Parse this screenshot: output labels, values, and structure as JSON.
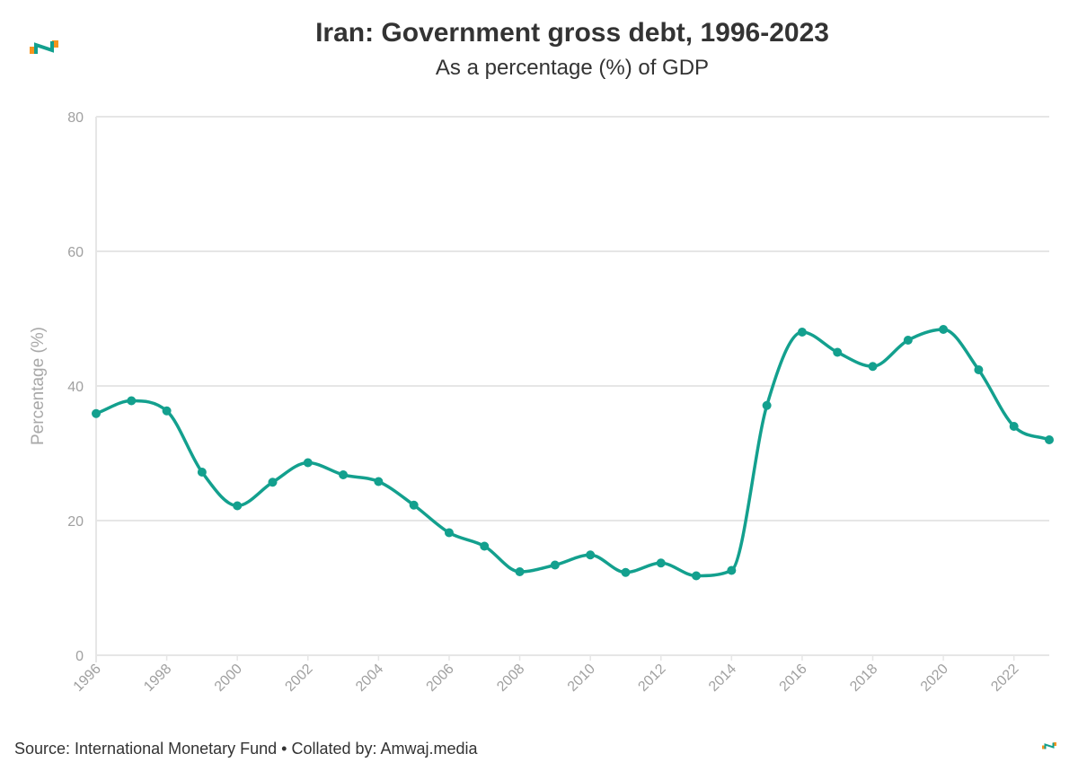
{
  "header": {
    "title": "Iran: Government gross debt, 1996-2023",
    "subtitle": "As a percentage (%) of GDP"
  },
  "footer": {
    "source": "Source: International Monetary Fund • Collated by: Amwaj.media"
  },
  "brand_colors": {
    "orange": "#f7941d",
    "teal": "#13a08e"
  },
  "chart_data": {
    "type": "line",
    "title": "Iran: Government gross debt, 1996-2023",
    "subtitle": "As a percentage (%) of GDP",
    "xlabel": "",
    "ylabel": "Percentage (%)",
    "ylim": [
      0,
      80
    ],
    "xlim": [
      1996,
      2023
    ],
    "y_ticks": [
      0,
      20,
      40,
      60,
      80
    ],
    "x_ticks": [
      1996,
      1998,
      2000,
      2002,
      2004,
      2006,
      2008,
      2010,
      2012,
      2014,
      2016,
      2018,
      2020,
      2022
    ],
    "grid": "horizontal",
    "line_color": "#13a08e",
    "x": [
      1996,
      1997,
      1998,
      1999,
      2000,
      2001,
      2002,
      2003,
      2004,
      2005,
      2006,
      2007,
      2008,
      2009,
      2010,
      2011,
      2012,
      2013,
      2014,
      2015,
      2016,
      2017,
      2018,
      2019,
      2020,
      2021,
      2022,
      2023
    ],
    "values": [
      35.9,
      37.8,
      36.3,
      27.2,
      22.2,
      25.7,
      28.6,
      26.8,
      25.8,
      22.3,
      18.2,
      16.2,
      12.4,
      13.4,
      14.9,
      12.3,
      13.7,
      11.8,
      12.6,
      37.1,
      48.0,
      45.0,
      42.9,
      46.8,
      48.4,
      42.4,
      34.0,
      32.0
    ]
  }
}
